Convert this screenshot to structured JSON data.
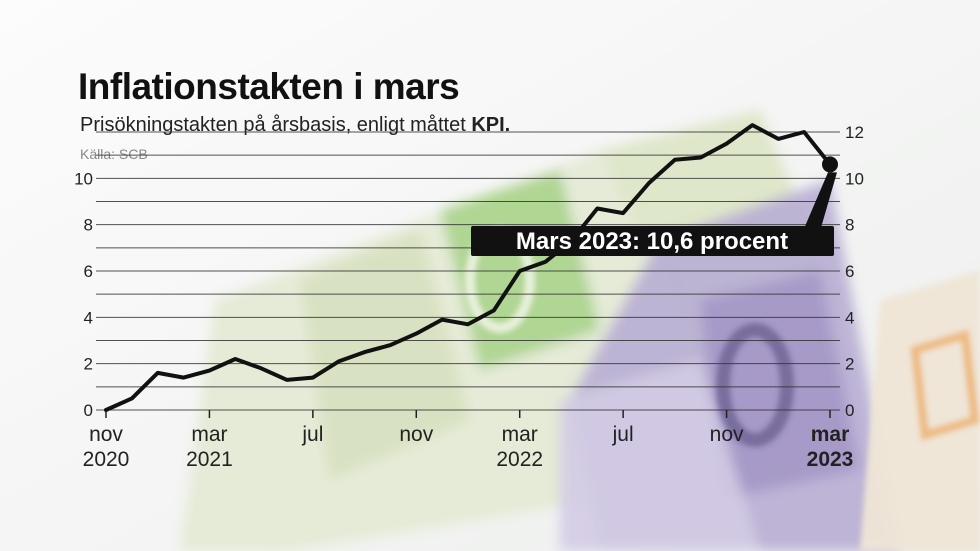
{
  "header": {
    "title": "Inflationstakten i mars",
    "subtitle_text": "Prisökningstakten på årsbasis, enligt måttet ",
    "subtitle_bold": "KPI.",
    "source": "Källa: SCB"
  },
  "colors": {
    "line": "#111111",
    "annotation_bg": "#111111",
    "annotation_text": "#ffffff"
  },
  "chart_data": {
    "type": "line",
    "title": "Inflationstakten i mars",
    "subtitle": "Prisökningstakten på årsbasis, enligt måttet KPI.",
    "source": "Källa: SCB",
    "x": [
      "2020-11",
      "2020-12",
      "2021-01",
      "2021-02",
      "2021-03",
      "2021-04",
      "2021-05",
      "2021-06",
      "2021-07",
      "2021-08",
      "2021-09",
      "2021-10",
      "2021-11",
      "2021-12",
      "2022-01",
      "2022-02",
      "2022-03",
      "2022-04",
      "2022-05",
      "2022-06",
      "2022-07",
      "2022-08",
      "2022-09",
      "2022-10",
      "2022-11",
      "2022-12",
      "2023-01",
      "2023-02",
      "2023-03"
    ],
    "series": [
      {
        "values": [
          0.0,
          0.5,
          1.6,
          1.4,
          1.7,
          2.2,
          1.8,
          1.3,
          1.4,
          2.1,
          2.5,
          2.8,
          3.3,
          3.9,
          3.7,
          4.3,
          6.0,
          6.4,
          7.3,
          8.7,
          8.5,
          9.8,
          10.8,
          10.9,
          11.5,
          12.3,
          11.7,
          12.0,
          10.6
        ]
      }
    ],
    "ylim": [
      0,
      12
    ],
    "y_ticks": [
      "0",
      "2",
      "4",
      "6",
      "8",
      "10",
      "12"
    ],
    "x_tick_labels": [
      {
        "month": "nov",
        "year": "2020",
        "index": 0
      },
      {
        "month": "mar",
        "year": "2021",
        "index": 4
      },
      {
        "month": "jul",
        "year": "",
        "index": 8
      },
      {
        "month": "nov",
        "year": "",
        "index": 12
      },
      {
        "month": "mar",
        "year": "2022",
        "index": 16
      },
      {
        "month": "jul",
        "year": "",
        "index": 20
      },
      {
        "month": "nov",
        "year": "",
        "index": 24
      },
      {
        "month": "mar",
        "year": "2023",
        "index": 28,
        "bold": true
      }
    ],
    "annotation": {
      "text": "Mars 2023: 10,6 procent",
      "index": 28,
      "value": 10.6
    },
    "grid": true
  }
}
